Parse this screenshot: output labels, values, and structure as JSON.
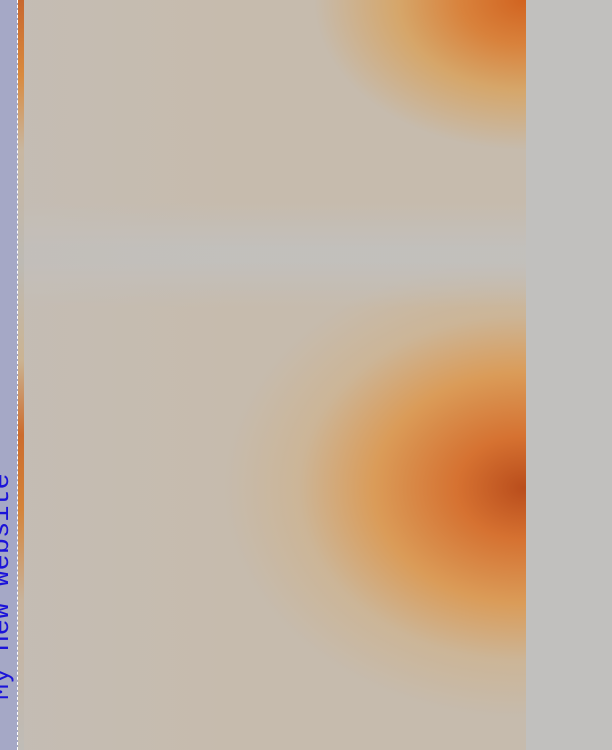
{
  "sidebar": {
    "link_text": "My new website"
  },
  "colors": {
    "sidebar_bg": "#a5a8c6",
    "link_color": "#1b13d9",
    "page_bg": "#c2c0bd",
    "accent_orange": "#d26a2a",
    "light_orange": "#e0a050"
  }
}
